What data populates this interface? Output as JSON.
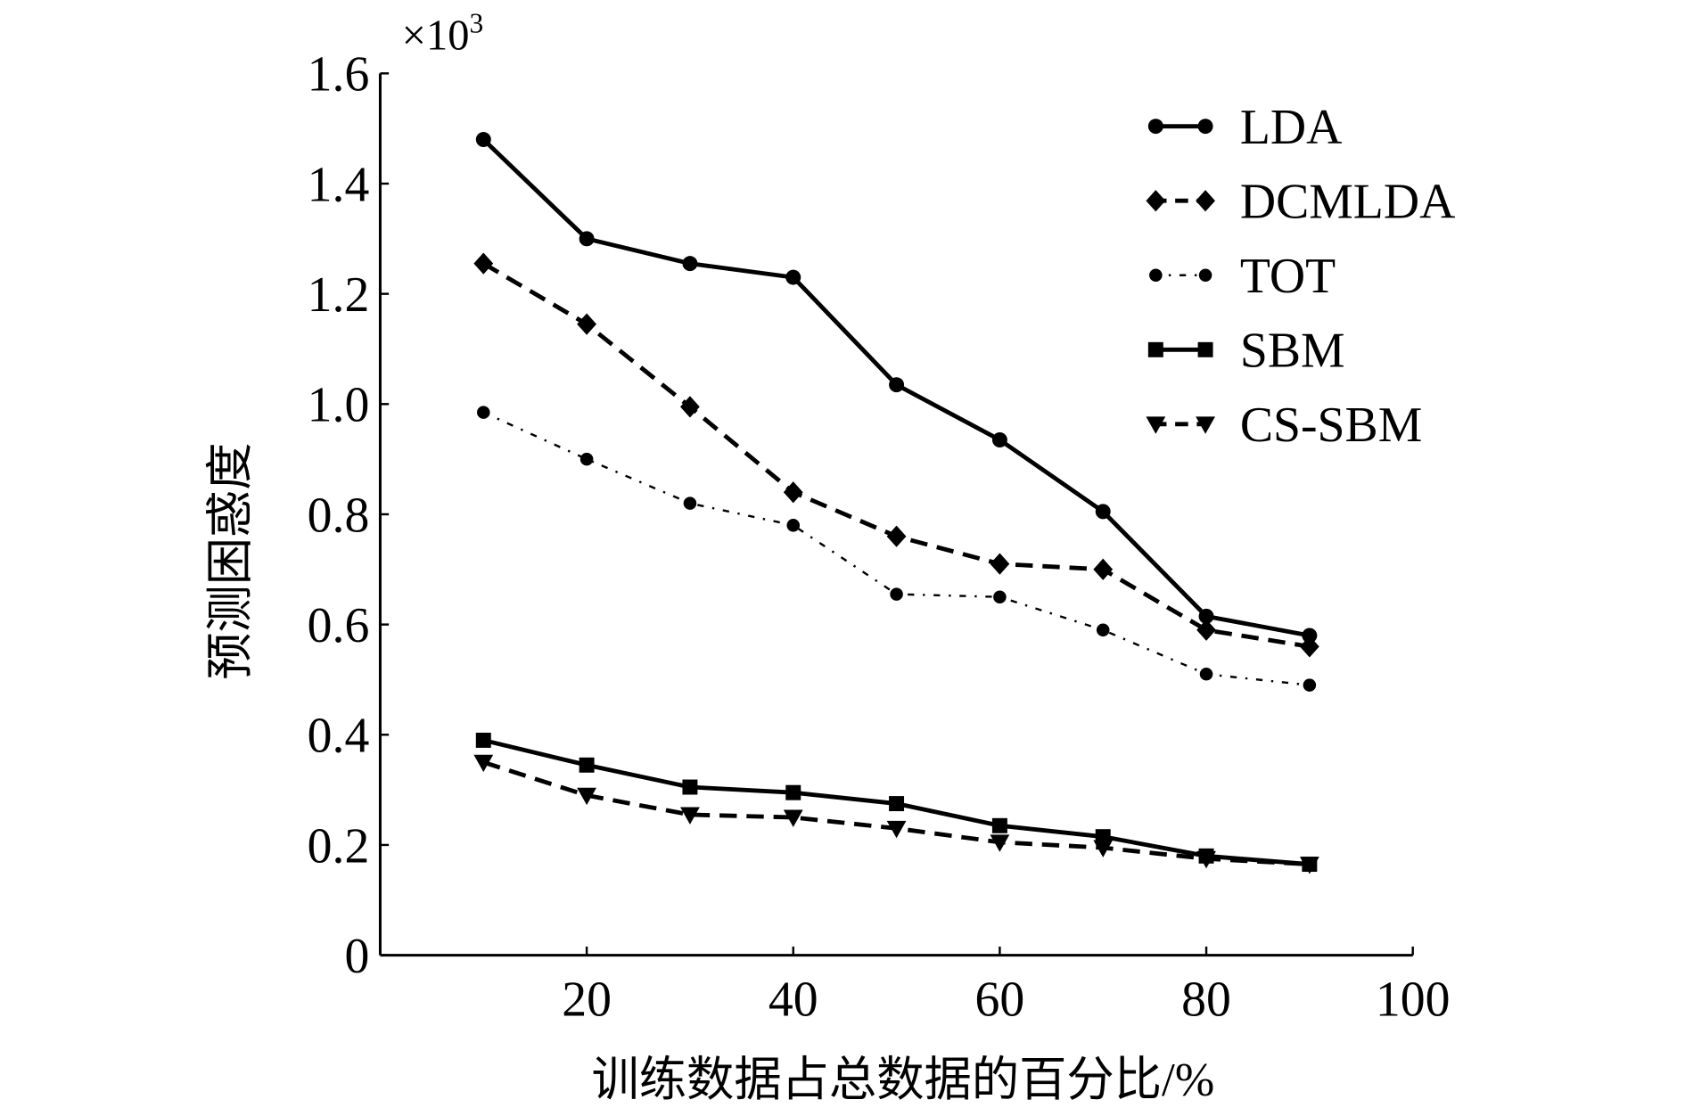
{
  "chart_data": {
    "type": "line",
    "xlabel": "训练数据占总数据的百分比/%",
    "ylabel": "预测困惑度",
    "y_multiplier": "×10",
    "y_multiplier_exp": "3",
    "xlim": [
      0,
      100
    ],
    "ylim": [
      0,
      1.6
    ],
    "xticks": [
      20,
      40,
      60,
      80,
      100
    ],
    "yticks": [
      0,
      0.2,
      0.4,
      0.6,
      0.8,
      1.0,
      1.2,
      1.4,
      1.6
    ],
    "ytick_labels": [
      "0",
      "0.2",
      "0.4",
      "0.6",
      "0.8",
      "1.0",
      "1.2",
      "1.4",
      "1.6"
    ],
    "grid": false,
    "legend_position": "top-right",
    "x": [
      10,
      20,
      30,
      40,
      50,
      60,
      70,
      80,
      90
    ],
    "series": [
      {
        "name": "LDA",
        "marker": "circle",
        "dash": "solid",
        "values": [
          1.48,
          1.3,
          1.255,
          1.23,
          1.035,
          0.935,
          0.805,
          0.615,
          0.58
        ]
      },
      {
        "name": "DCMLDA",
        "marker": "diamond",
        "dash": "dashed",
        "values": [
          1.255,
          1.145,
          0.995,
          0.84,
          0.76,
          0.71,
          0.7,
          0.59,
          0.56
        ]
      },
      {
        "name": "TOT",
        "marker": "hexagon",
        "dash": "dashdot",
        "values": [
          0.985,
          0.9,
          0.82,
          0.78,
          0.655,
          0.65,
          0.59,
          0.51,
          0.49
        ]
      },
      {
        "name": "SBM",
        "marker": "square",
        "dash": "solid",
        "values": [
          0.39,
          0.345,
          0.305,
          0.295,
          0.275,
          0.235,
          0.215,
          0.18,
          0.165
        ]
      },
      {
        "name": "CS-SBM",
        "marker": "triangle-down",
        "dash": "dashed",
        "values": [
          0.35,
          0.29,
          0.255,
          0.25,
          0.23,
          0.205,
          0.195,
          0.175,
          0.165
        ]
      }
    ]
  }
}
